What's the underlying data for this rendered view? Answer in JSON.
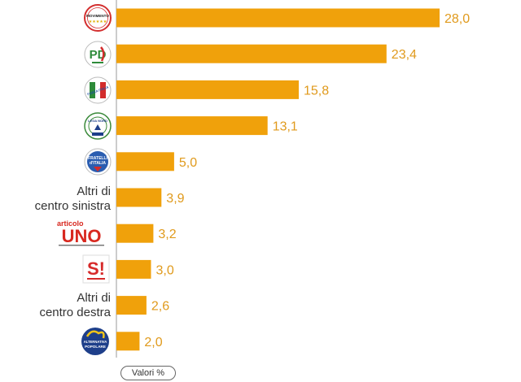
{
  "chart_data": {
    "type": "bar",
    "orientation": "horizontal",
    "categories": [
      "MoVimento 5 Stelle",
      "Partito Democratico",
      "Forza Italia",
      "Lega Nord - Salvini",
      "Fratelli d'Italia",
      "Altri di centro sinistra",
      "Articolo Uno",
      "Sinistra Italiana",
      "Altri di centro destra",
      "Alternativa Popolare"
    ],
    "category_display": [
      "logo",
      "logo",
      "logo",
      "logo",
      "logo",
      "text",
      "logo",
      "logo",
      "text",
      "logo"
    ],
    "text_labels": [
      [
        "Altri di",
        "centro sinistra"
      ],
      [
        "Altri di",
        "centro destra"
      ]
    ],
    "values": [
      28.0,
      23.4,
      15.8,
      13.1,
      5.0,
      3.9,
      3.2,
      3.0,
      2.6,
      2.0
    ],
    "value_labels": [
      "28,0",
      "23,4",
      "15,8",
      "13,1",
      "5,0",
      "3,9",
      "3,2",
      "3,0",
      "2,6",
      "2,0"
    ],
    "unit_label": "Valori %",
    "xlim": [
      0,
      28
    ],
    "grid": false,
    "legend": "none"
  },
  "logo_text": {
    "m5s": "MOVIMENTO",
    "pd": "PD",
    "fi": "FORZA ITALIA",
    "lega": "LEGA NORD",
    "fdi": [
      "FRATELLI",
      "d'ITALIA"
    ],
    "uno_top": "articolo",
    "uno_main": "UNO",
    "si": "S!",
    "ap": [
      "ALTERNATIVA",
      "POPOLARE"
    ]
  },
  "colors": {
    "bar": "#F0A10B",
    "value_label": "#E09A1C",
    "axis": "#999999",
    "m5s_red": "#D32F2F",
    "pd_green": "#2E8B3A",
    "pd_red": "#D22B2B",
    "fi_blue": "#1E4FA0",
    "lega_green": "#3A8A3A",
    "fdi_blue": "#2A5DB0",
    "uno_red": "#D8281F",
    "si_red": "#D62A2A",
    "ap_blue": "#1E3F8A"
  }
}
